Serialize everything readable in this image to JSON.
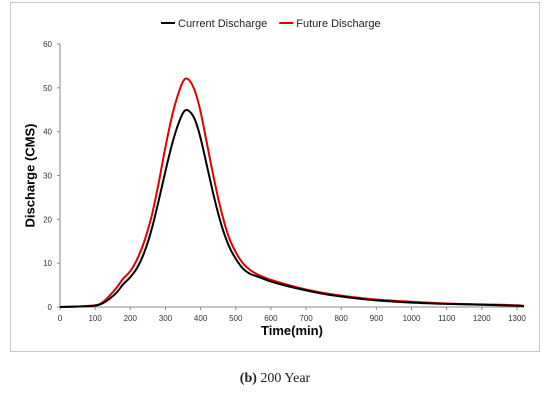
{
  "chart_data": {
    "type": "line",
    "title": "",
    "xlabel": "Time(min)",
    "ylabel": "Discharge (CMS)",
    "xlim": [
      0,
      1320
    ],
    "ylim": [
      0,
      60
    ],
    "x_ticks": [
      0,
      100,
      200,
      300,
      400,
      500,
      600,
      700,
      800,
      900,
      1000,
      1100,
      1200,
      1300
    ],
    "y_ticks": [
      0,
      10,
      20,
      30,
      40,
      50,
      60
    ],
    "grid": false,
    "legend_position": "top",
    "series": [
      {
        "name": "Current Discharge",
        "color": "#000000",
        "x": [
          0,
          50,
          100,
          120,
          140,
          160,
          180,
          200,
          220,
          240,
          260,
          280,
          300,
          320,
          340,
          355,
          370,
          385,
          400,
          420,
          440,
          460,
          480,
          500,
          520,
          540,
          560,
          580,
          600,
          650,
          700,
          750,
          800,
          850,
          900,
          1000,
          1100,
          1200,
          1300,
          1320
        ],
        "y": [
          0,
          0.1,
          0.3,
          0.8,
          1.8,
          3.2,
          5.2,
          6.8,
          9.0,
          12.5,
          17.5,
          24.0,
          31.0,
          37.5,
          42.5,
          44.8,
          44.5,
          42.5,
          38.5,
          31.5,
          24.5,
          18.5,
          14.0,
          11.0,
          8.8,
          7.6,
          7.0,
          6.4,
          5.8,
          4.7,
          3.8,
          3.0,
          2.4,
          1.9,
          1.5,
          1.0,
          0.7,
          0.5,
          0.3,
          0.2
        ]
      },
      {
        "name": "Future Discharge",
        "color": "#e00000",
        "x": [
          0,
          50,
          100,
          120,
          140,
          160,
          180,
          200,
          220,
          240,
          260,
          280,
          300,
          320,
          340,
          355,
          370,
          385,
          400,
          420,
          440,
          460,
          480,
          500,
          520,
          540,
          560,
          580,
          600,
          650,
          700,
          750,
          800,
          850,
          900,
          1000,
          1100,
          1200,
          1300,
          1320
        ],
        "y": [
          0,
          0.1,
          0.4,
          1.0,
          2.5,
          4.3,
          6.5,
          8.2,
          11.0,
          15.0,
          20.5,
          28.0,
          36.5,
          44.0,
          49.5,
          52.0,
          51.5,
          49.0,
          44.5,
          36.5,
          28.5,
          21.5,
          16.0,
          12.5,
          10.0,
          8.5,
          7.5,
          6.8,
          6.2,
          5.0,
          4.0,
          3.2,
          2.6,
          2.1,
          1.7,
          1.2,
          0.8,
          0.6,
          0.4,
          0.2
        ]
      }
    ]
  },
  "caption": {
    "label": "(b)",
    "text": " 200 Year"
  }
}
